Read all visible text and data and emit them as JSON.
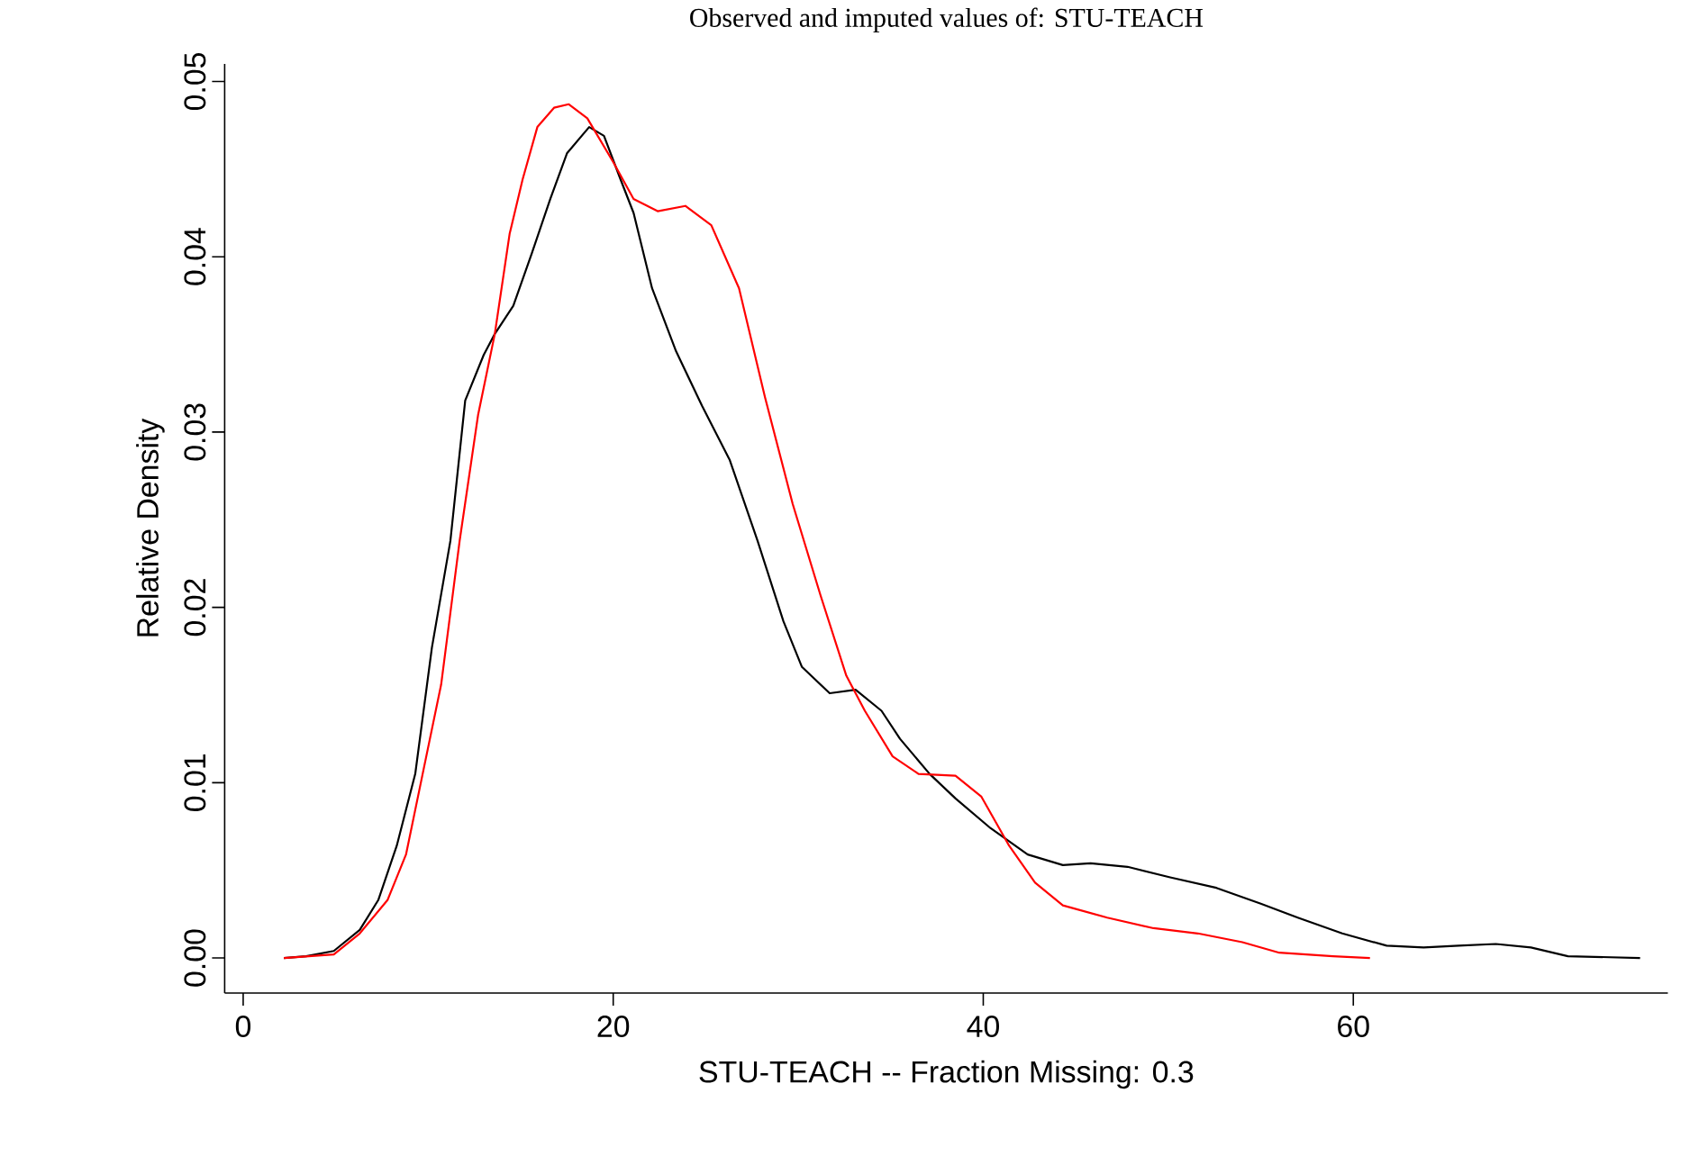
{
  "chart_data": {
    "type": "line",
    "title": "Observed and imputed values of: STU-TEACH",
    "xlabel": "STU-TEACH  --  Fraction Missing: 0.3",
    "ylabel": "Relative Density",
    "xlim": [
      -1,
      77
    ],
    "ylim": [
      -0.002,
      0.051
    ],
    "xticks": [
      0,
      20,
      40,
      60
    ],
    "yticks": [
      {
        "value": 0,
        "label": "0.00"
      },
      {
        "value": 0.01,
        "label": "0.01"
      },
      {
        "value": 0.02,
        "label": "0.02"
      },
      {
        "value": 0.03,
        "label": "0.03"
      },
      {
        "value": 0.04,
        "label": "0.04"
      },
      {
        "value": 0.05,
        "label": "0.05"
      }
    ],
    "series": [
      {
        "color": "#000000",
        "x": [
          2.2,
          3.4,
          4.9,
          6.3,
          7.3,
          8.3,
          9.3,
          10.2,
          11.2,
          12.0,
          13.0,
          13.6,
          14.6,
          15.6,
          16.6,
          17.5,
          18.7,
          19.5,
          20.4,
          21.1,
          22.1,
          23.4,
          24.8,
          26.3,
          27.8,
          29.2,
          30.2,
          31.7,
          33.1,
          34.5,
          35.5,
          37.1,
          38.5,
          40.4,
          42.4,
          44.3,
          45.8,
          47.8,
          50.1,
          52.6,
          55.0,
          57.0,
          59.4,
          61.8,
          63.8,
          65.7,
          67.7,
          69.6,
          71.6,
          75.5
        ],
        "values": [
          0,
          0.0001,
          0.0004,
          0.0016,
          0.0033,
          0.0064,
          0.0105,
          0.0177,
          0.0238,
          0.0318,
          0.0344,
          0.0356,
          0.0372,
          0.0402,
          0.0433,
          0.0459,
          0.0474,
          0.0469,
          0.0444,
          0.0425,
          0.0382,
          0.0346,
          0.0315,
          0.0284,
          0.0238,
          0.0192,
          0.0166,
          0.0151,
          0.0153,
          0.0141,
          0.0125,
          0.0105,
          0.0091,
          0.0074,
          0.0059,
          0.0053,
          0.0054,
          0.0052,
          0.0046,
          0.004,
          0.0031,
          0.0023,
          0.0014,
          0.0007,
          0.0006,
          0.0007,
          0.0008,
          0.0006,
          0.0001,
          0
        ]
      },
      {
        "color": "#ff0000",
        "x": [
          2.2,
          4.9,
          6.3,
          7.8,
          8.8,
          9.7,
          10.7,
          11.7,
          12.7,
          13.6,
          14.4,
          15.1,
          15.9,
          16.8,
          17.6,
          18.6,
          20.0,
          21.1,
          22.4,
          23.9,
          25.3,
          26.8,
          28.2,
          29.7,
          31.2,
          32.6,
          33.6,
          35.1,
          36.5,
          38.5,
          39.9,
          41.4,
          42.8,
          44.3,
          46.7,
          49.2,
          51.6,
          54.0,
          56.0,
          58.9,
          60.9
        ],
        "values": [
          0,
          0.0002,
          0.0014,
          0.0033,
          0.0059,
          0.0105,
          0.0156,
          0.0238,
          0.031,
          0.0356,
          0.0413,
          0.0444,
          0.0474,
          0.0485,
          0.0487,
          0.0479,
          0.0454,
          0.0433,
          0.0426,
          0.0429,
          0.0418,
          0.0382,
          0.032,
          0.0259,
          0.0207,
          0.0161,
          0.0141,
          0.0115,
          0.0105,
          0.0104,
          0.0092,
          0.0064,
          0.0043,
          0.003,
          0.0023,
          0.0017,
          0.0014,
          0.0009,
          0.0003,
          0.0001,
          0
        ]
      }
    ]
  }
}
